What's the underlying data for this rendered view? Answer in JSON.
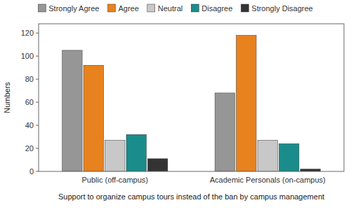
{
  "chart_data": {
    "type": "bar",
    "xlabel": "Support to organize campus tours instead of the ban by campus management",
    "ylabel": "Numbers",
    "categories": [
      "Public (off-campus)",
      "Academic Personals (on-campus)"
    ],
    "series": [
      {
        "name": "Strongly Agree",
        "color": "#969696",
        "values": [
          105,
          68
        ]
      },
      {
        "name": "Agree",
        "color": "#E8821E",
        "values": [
          92,
          118
        ]
      },
      {
        "name": "Neutral",
        "color": "#C8C8C8",
        "values": [
          27,
          27
        ]
      },
      {
        "name": "Disagree",
        "color": "#1A8C8C",
        "values": [
          32,
          24
        ]
      },
      {
        "name": "Strongly Disagree",
        "color": "#333333",
        "values": [
          11,
          2
        ]
      }
    ],
    "ylim": [
      0,
      128
    ],
    "yticks": [
      0,
      20,
      40,
      60,
      80,
      100,
      120
    ],
    "grid": false,
    "legend": "top"
  }
}
